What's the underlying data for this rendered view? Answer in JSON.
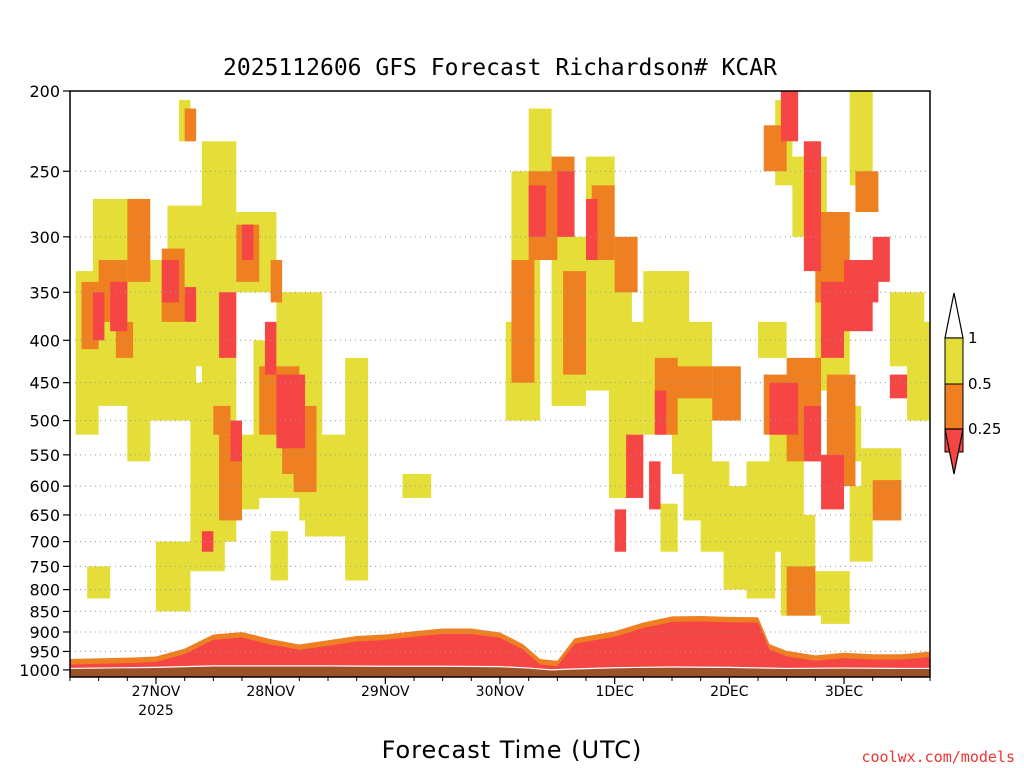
{
  "chart_data": {
    "type": "heatmap",
    "title": "2025112606 GFS Forecast Richardson# KCAR",
    "xlabel": "Forecast Time (UTC)",
    "credit": "coolwx.com/models",
    "x_ticks": [
      "27NOV",
      "28NOV",
      "29NOV",
      "30NOV",
      "1DEC",
      "2DEC",
      "3DEC"
    ],
    "x_year_label": "2025",
    "x_range_days": [
      -0.75,
      6.75
    ],
    "y_ticks": [
      200,
      250,
      300,
      350,
      400,
      450,
      500,
      550,
      600,
      650,
      700,
      750,
      800,
      850,
      900,
      950,
      1000
    ],
    "y_range_hPa": [
      200,
      1020
    ],
    "y_scale": "log",
    "grid": "dotted horizontal",
    "legend": {
      "placement": "right",
      "labels": [
        "1",
        "0.5",
        "0.25"
      ],
      "classes": [
        {
          "range": "0.5–1",
          "color": "#e5dd38"
        },
        {
          "range": "0.25–0.5",
          "color": "#ee8022"
        },
        {
          "range": "< 0.25",
          "color": "#f54545"
        }
      ]
    },
    "colors": {
      "gt05": "#e5dd38",
      "mid": "#ee8022",
      "lt025": "#f54545",
      "ground": "#9b5228"
    },
    "surface_pressure_hPa": [
      [
        -0.75,
        996
      ],
      [
        0.0,
        993
      ],
      [
        0.5,
        989
      ],
      [
        1.0,
        989
      ],
      [
        1.5,
        989
      ],
      [
        2.0,
        990
      ],
      [
        2.5,
        990
      ],
      [
        3.0,
        991
      ],
      [
        3.25,
        995
      ],
      [
        3.45,
        1000
      ],
      [
        3.6,
        998
      ],
      [
        4.0,
        994
      ],
      [
        4.5,
        992
      ],
      [
        5.0,
        993
      ],
      [
        5.5,
        996
      ],
      [
        6.0,
        995
      ],
      [
        6.5,
        996
      ],
      [
        6.75,
        996
      ]
    ],
    "low_ri_layer_top_hPa": [
      [
        -0.75,
        985
      ],
      [
        -0.2,
        981
      ],
      [
        0.0,
        978
      ],
      [
        0.25,
        957
      ],
      [
        0.5,
        920
      ],
      [
        0.75,
        914
      ],
      [
        1.0,
        932
      ],
      [
        1.25,
        946
      ],
      [
        1.5,
        935
      ],
      [
        1.75,
        924
      ],
      [
        2.0,
        920
      ],
      [
        2.25,
        912
      ],
      [
        2.5,
        905
      ],
      [
        2.75,
        905
      ],
      [
        3.0,
        915
      ],
      [
        3.2,
        945
      ],
      [
        3.35,
        985
      ],
      [
        3.5,
        990
      ],
      [
        3.65,
        930
      ],
      [
        4.0,
        912
      ],
      [
        4.25,
        890
      ],
      [
        4.5,
        875
      ],
      [
        4.75,
        874
      ],
      [
        5.0,
        876
      ],
      [
        5.25,
        877
      ],
      [
        5.35,
        945
      ],
      [
        5.5,
        963
      ],
      [
        5.75,
        975
      ],
      [
        6.0,
        968
      ],
      [
        6.25,
        972
      ],
      [
        6.5,
        972
      ],
      [
        6.75,
        965
      ]
    ],
    "series": [
      {
        "name": "0.5–1",
        "class": "gt05",
        "cells": [
          [
            -0.7,
            0.2,
            330,
            520
          ],
          [
            -0.55,
            0.4,
            270,
            480
          ],
          [
            -0.25,
            0.2,
            300,
            560
          ],
          [
            -0.2,
            0.55,
            320,
            500
          ],
          [
            0.1,
            0.4,
            275,
            430
          ],
          [
            0.3,
            0.3,
            450,
            760
          ],
          [
            0.4,
            0.3,
            230,
            700
          ],
          [
            0.6,
            0.3,
            520,
            640
          ],
          [
            0.7,
            0.35,
            280,
            350
          ],
          [
            0.85,
            0.5,
            400,
            620
          ],
          [
            1.05,
            0.4,
            350,
            520
          ],
          [
            1.25,
            0.35,
            520,
            660
          ],
          [
            1.3,
            0.45,
            600,
            690
          ],
          [
            1.6,
            0.2,
            520,
            640
          ],
          [
            0.2,
            0.1,
            205,
            230
          ],
          [
            1.65,
            0.2,
            420,
            780
          ],
          [
            3.1,
            0.25,
            250,
            400
          ],
          [
            3.25,
            0.2,
            210,
            300
          ],
          [
            3.05,
            0.3,
            380,
            500
          ],
          [
            3.45,
            0.3,
            300,
            480
          ],
          [
            3.75,
            0.25,
            240,
            460
          ],
          [
            3.95,
            0.2,
            320,
            620
          ],
          [
            4.05,
            0.2,
            380,
            520
          ],
          [
            4.25,
            0.4,
            330,
            520
          ],
          [
            4.5,
            0.35,
            380,
            580
          ],
          [
            4.6,
            0.25,
            520,
            660
          ],
          [
            4.75,
            0.25,
            560,
            720
          ],
          [
            4.95,
            0.45,
            600,
            800
          ],
          [
            5.15,
            0.25,
            560,
            820
          ],
          [
            5.35,
            0.3,
            480,
            720
          ],
          [
            5.45,
            0.3,
            650,
            860
          ],
          [
            5.75,
            0.3,
            350,
            460
          ],
          [
            5.9,
            0.25,
            480,
            560
          ],
          [
            6.15,
            0.35,
            540,
            640
          ],
          [
            6.4,
            0.3,
            350,
            430
          ],
          [
            6.55,
            0.2,
            380,
            500
          ],
          [
            5.4,
            0.15,
            205,
            260
          ],
          [
            5.55,
            0.3,
            240,
            300
          ],
          [
            6.05,
            0.2,
            200,
            260
          ],
          [
            5.25,
            0.25,
            380,
            420
          ],
          [
            0.0,
            0.3,
            700,
            850
          ],
          [
            -0.6,
            0.2,
            750,
            820
          ],
          [
            1.0,
            0.15,
            680,
            780
          ],
          [
            4.4,
            0.15,
            630,
            720
          ],
          [
            5.65,
            0.4,
            760,
            860
          ],
          [
            5.8,
            0.25,
            840,
            880
          ],
          [
            6.05,
            0.2,
            600,
            740
          ],
          [
            2.15,
            0.25,
            580,
            620
          ]
        ]
      },
      {
        "name": "0.25–0.5",
        "class": "mid",
        "cells": [
          [
            -0.65,
            0.15,
            340,
            410
          ],
          [
            -0.5,
            0.25,
            320,
            380
          ],
          [
            -0.25,
            0.2,
            270,
            340
          ],
          [
            0.05,
            0.2,
            310,
            380
          ],
          [
            0.7,
            0.2,
            290,
            340
          ],
          [
            0.9,
            0.35,
            430,
            520
          ],
          [
            1.1,
            0.3,
            480,
            580
          ],
          [
            1.2,
            0.2,
            530,
            610
          ],
          [
            0.55,
            0.2,
            520,
            660
          ],
          [
            3.1,
            0.2,
            320,
            450
          ],
          [
            3.25,
            0.25,
            250,
            320
          ],
          [
            3.45,
            0.2,
            240,
            300
          ],
          [
            3.55,
            0.2,
            330,
            440
          ],
          [
            3.8,
            0.2,
            260,
            320
          ],
          [
            4.0,
            0.2,
            300,
            350
          ],
          [
            4.35,
            0.2,
            420,
            520
          ],
          [
            4.5,
            0.35,
            430,
            470
          ],
          [
            4.85,
            0.25,
            430,
            500
          ],
          [
            5.3,
            0.3,
            440,
            520
          ],
          [
            5.5,
            0.3,
            420,
            560
          ],
          [
            5.75,
            0.3,
            280,
            360
          ],
          [
            5.85,
            0.25,
            440,
            600
          ],
          [
            6.1,
            0.2,
            250,
            280
          ],
          [
            6.25,
            0.25,
            590,
            660
          ],
          [
            5.3,
            0.2,
            220,
            250
          ],
          [
            0.25,
            0.1,
            210,
            230
          ],
          [
            -0.35,
            0.15,
            380,
            420
          ],
          [
            0.5,
            0.15,
            480,
            520
          ],
          [
            1.0,
            0.1,
            320,
            360
          ],
          [
            5.5,
            0.25,
            750,
            860
          ]
        ]
      },
      {
        "name": "< 0.25",
        "class": "lt025",
        "cells": [
          [
            -0.55,
            0.1,
            350,
            400
          ],
          [
            -0.4,
            0.15,
            340,
            390
          ],
          [
            0.05,
            0.15,
            320,
            360
          ],
          [
            0.25,
            0.1,
            345,
            380
          ],
          [
            0.55,
            0.15,
            350,
            420
          ],
          [
            0.95,
            0.1,
            380,
            440
          ],
          [
            1.05,
            0.25,
            440,
            540
          ],
          [
            0.75,
            0.1,
            290,
            320
          ],
          [
            3.25,
            0.15,
            260,
            300
          ],
          [
            3.5,
            0.15,
            250,
            300
          ],
          [
            3.75,
            0.1,
            270,
            320
          ],
          [
            4.1,
            0.15,
            520,
            620
          ],
          [
            4.0,
            0.1,
            640,
            720
          ],
          [
            4.35,
            0.1,
            460,
            520
          ],
          [
            5.35,
            0.25,
            450,
            520
          ],
          [
            5.65,
            0.15,
            480,
            560
          ],
          [
            5.45,
            0.15,
            200,
            230
          ],
          [
            5.65,
            0.15,
            230,
            330
          ],
          [
            5.8,
            0.2,
            340,
            420
          ],
          [
            6.0,
            0.25,
            320,
            390
          ],
          [
            6.15,
            0.15,
            320,
            360
          ],
          [
            6.25,
            0.15,
            300,
            340
          ],
          [
            5.8,
            0.2,
            550,
            640
          ],
          [
            6.4,
            0.15,
            440,
            470
          ],
          [
            0.65,
            0.1,
            500,
            560
          ],
          [
            4.3,
            0.1,
            560,
            640
          ],
          [
            0.4,
            0.1,
            680,
            720
          ]
        ]
      }
    ]
  }
}
